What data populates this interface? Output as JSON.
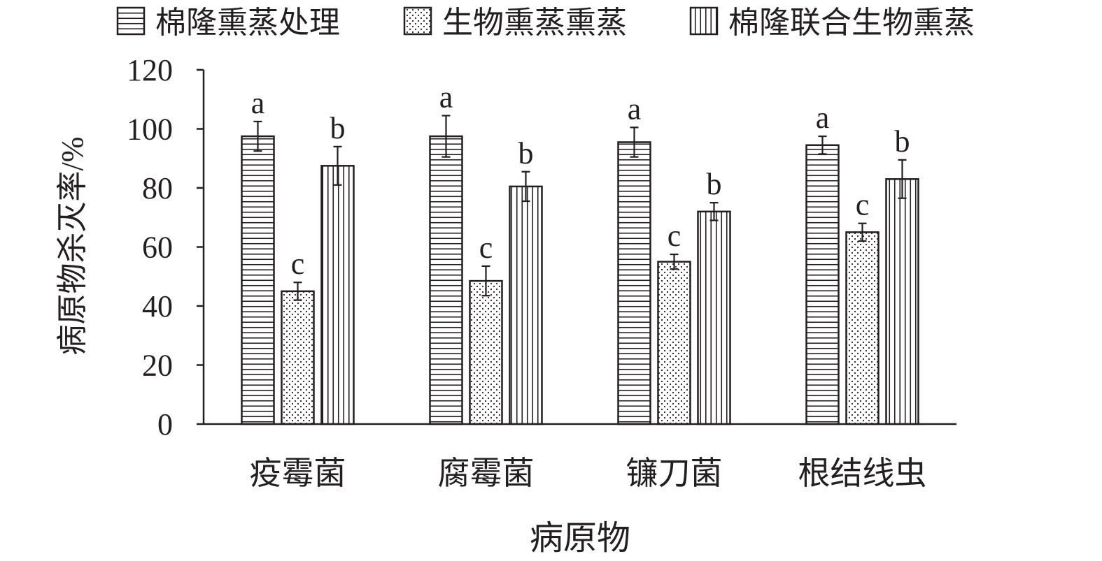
{
  "chart_data": {
    "type": "bar",
    "xlabel": "病原物",
    "ylabel": "病原物杀灭率/%",
    "ylim": [
      0,
      120
    ],
    "yticks": [
      "0",
      "20",
      "40",
      "60",
      "80",
      "100",
      "120"
    ],
    "ytick_values": [
      0,
      20,
      40,
      60,
      80,
      100,
      120
    ],
    "grid": false,
    "legend_position": "top",
    "categories": [
      "疫霉菌",
      "腐霉菌",
      "镰刀菌",
      "根结线虫"
    ],
    "series": [
      {
        "name": "棉隆熏蒸处理",
        "pattern": "horizontal-lines",
        "values": [
          97.5,
          97.5,
          95.5,
          94.5
        ],
        "errors": [
          5.0,
          7.0,
          5.0,
          3.0
        ],
        "letters": [
          "a",
          "a",
          "a",
          "a"
        ]
      },
      {
        "name": "生物熏蒸熏蒸",
        "pattern": "dots",
        "values": [
          45,
          48.5,
          55,
          65
        ],
        "errors": [
          3.0,
          5.0,
          2.5,
          3.0
        ],
        "letters": [
          "c",
          "c",
          "c",
          "c"
        ]
      },
      {
        "name": "棉隆联合生物熏蒸",
        "pattern": "vertical-lines",
        "values": [
          87.5,
          80.5,
          72,
          83
        ],
        "errors": [
          6.5,
          5.0,
          3.0,
          6.5
        ],
        "letters": [
          "b",
          "b",
          "b",
          "b"
        ]
      }
    ]
  },
  "colors": {
    "ink": "#231f20",
    "background": "#ffffff"
  }
}
